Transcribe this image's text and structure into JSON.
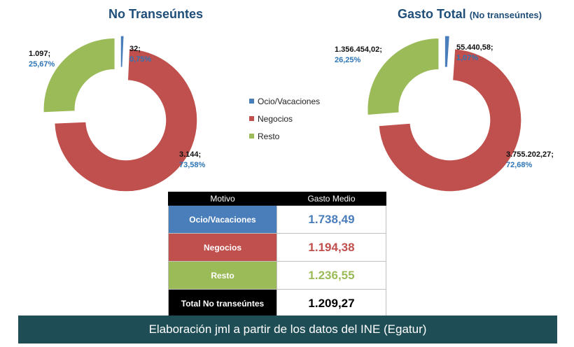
{
  "colors": {
    "ocio": "#4a7ebb",
    "negocios": "#c0504d",
    "resto": "#9bbb59",
    "total": "#000000",
    "title": "#1f4e79",
    "footer": "#1e4d55"
  },
  "chart_data": [
    {
      "type": "pie",
      "title": "No Transeúntes",
      "categories": [
        "Ocio/Vacaciones",
        "Negocios",
        "Resto"
      ],
      "values": [
        32,
        3144,
        1097
      ],
      "value_labels": [
        "32;",
        "3.144;",
        "1.097;"
      ],
      "percent_labels": [
        "0,75%",
        "73,58%",
        "25,67%"
      ],
      "percents": [
        0.75,
        73.58,
        25.67
      ],
      "legend": "center"
    },
    {
      "type": "pie",
      "title": "Gasto Total",
      "subtitle": "(No transeúntes)",
      "categories": [
        "Ocio/Vacaciones",
        "Negocios",
        "Resto"
      ],
      "values": [
        55440.58,
        3755202.27,
        1356454.02
      ],
      "value_labels": [
        "55.440,58;",
        "3.755.202,27;",
        "1.356.454,02;"
      ],
      "percent_labels": [
        "1,07%",
        "72,68%",
        "26,25%"
      ],
      "percents": [
        1.07,
        72.68,
        26.25
      ],
      "legend": "center"
    },
    {
      "type": "table",
      "columns": [
        "Motivo",
        "Gasto Medio"
      ],
      "rows": [
        {
          "motivo": "Ocio/Vacaciones",
          "gasto": "1.738,49"
        },
        {
          "motivo": "Negocios",
          "gasto": "1.194,38"
        },
        {
          "motivo": "Resto",
          "gasto": "1.236,55"
        },
        {
          "motivo": "Total No transeúntes",
          "gasto": "1.209,27"
        }
      ]
    }
  ],
  "legend": {
    "items": [
      "Ocio/Vacaciones",
      "Negocios",
      "Resto"
    ]
  },
  "footer": {
    "text": "Elaboración jml a partir de los datos del INE (Egatur)"
  }
}
